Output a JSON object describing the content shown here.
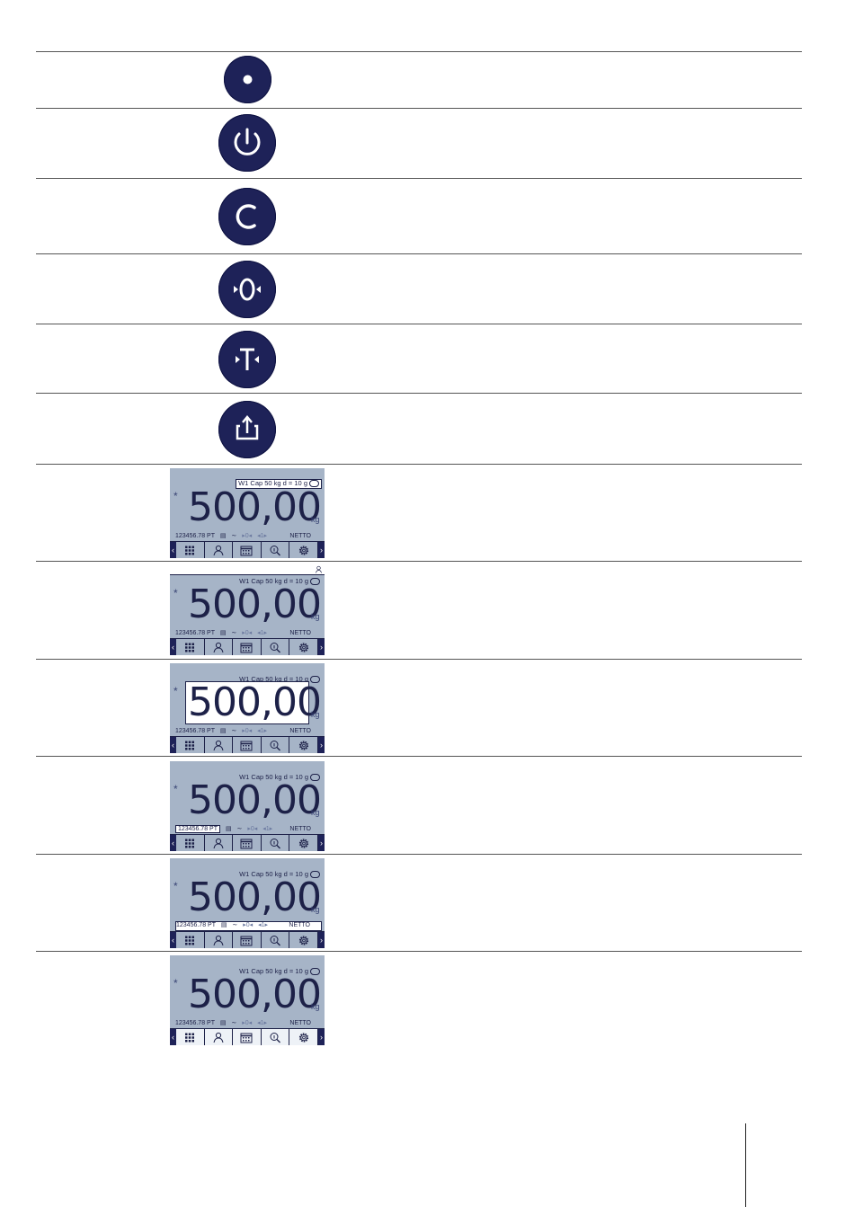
{
  "keys": [
    {
      "name": "fn-dot-key",
      "icon": "dot-icon"
    },
    {
      "name": "power-key",
      "icon": "power-icon"
    },
    {
      "name": "clear-key",
      "icon": "clear-c-icon"
    },
    {
      "name": "zero-key",
      "icon": "zero-icon"
    },
    {
      "name": "tare-key",
      "icon": "tare-icon"
    },
    {
      "name": "transfer-key",
      "icon": "transfer-icon"
    }
  ],
  "display": {
    "metrology": "W1 Cap 50 kg d = 10 g",
    "star": "*",
    "weight": "500,00",
    "unit": "kg",
    "id_text": "123456.78 PT",
    "net_label": "NETTO",
    "icons": [
      "menu-grid-icon",
      "user-icon",
      "calendar-icon",
      "search-icon",
      "settings-icon"
    ],
    "highlighted": [
      "top-line",
      "info-bar",
      "weight",
      "id-field",
      "status-line",
      "toolbar"
    ]
  }
}
